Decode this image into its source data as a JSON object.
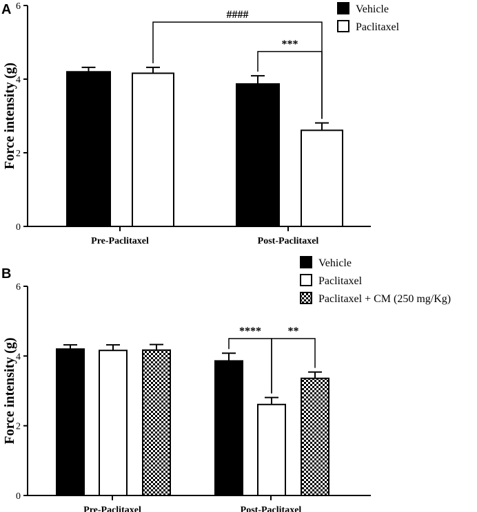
{
  "chart_data": [
    {
      "panel": "A",
      "type": "bar",
      "ylabel": "Force intensity  (g)",
      "xlabel": "",
      "ylim": [
        0,
        6
      ],
      "yticks": [
        "0",
        "2",
        "4",
        "6"
      ],
      "categories": [
        "Pre-Paclitaxel",
        "Post-Paclitaxel"
      ],
      "series": [
        {
          "name": "Vehicle",
          "pattern": "solid",
          "values": [
            4.2,
            3.87
          ],
          "errors": [
            0.12,
            0.22
          ]
        },
        {
          "name": "Paclitaxel",
          "pattern": "open",
          "values": [
            4.16,
            2.61
          ],
          "errors": [
            0.16,
            0.2
          ]
        }
      ],
      "legend_position": "top-right",
      "annotations": [
        {
          "label": "####",
          "from": {
            "category": 0,
            "series": 1
          },
          "to": {
            "category": 1,
            "series": 1
          },
          "level": 5.55
        },
        {
          "label": "***",
          "from": {
            "category": 1,
            "series": 0
          },
          "to": {
            "category": 1,
            "series": 1
          },
          "level": 4.75
        }
      ]
    },
    {
      "panel": "B",
      "type": "bar",
      "ylabel": "Force intensity  (g)",
      "xlabel": "",
      "ylim": [
        0,
        6
      ],
      "yticks": [
        "0",
        "2",
        "4",
        "6"
      ],
      "categories": [
        "Pre-Paclitaxel",
        "Post-Paclitaxel"
      ],
      "series": [
        {
          "name": "Vehicle",
          "pattern": "solid",
          "values": [
            4.2,
            3.86
          ],
          "errors": [
            0.12,
            0.22
          ]
        },
        {
          "name": "Paclitaxel",
          "pattern": "open",
          "values": [
            4.16,
            2.61
          ],
          "errors": [
            0.16,
            0.2
          ]
        },
        {
          "name": "Paclitaxel + CM (250 mg/Kg)",
          "pattern": "checker",
          "values": [
            4.17,
            3.36
          ],
          "errors": [
            0.16,
            0.18
          ]
        }
      ],
      "legend_position": "top-right",
      "annotations": [
        {
          "label": "****",
          "from": {
            "category": 1,
            "series": 0
          },
          "to": {
            "category": 1,
            "series": 1
          },
          "level": 4.5
        },
        {
          "label": "**",
          "from": {
            "category": 1,
            "series": 1
          },
          "to": {
            "category": 1,
            "series": 2
          },
          "level": 4.5
        }
      ]
    }
  ],
  "colors": {
    "solid": "#000000",
    "open": "#ffffff",
    "stroke": "#000000",
    "checker_dark": "#000000",
    "checker_light": "#ffffff"
  }
}
